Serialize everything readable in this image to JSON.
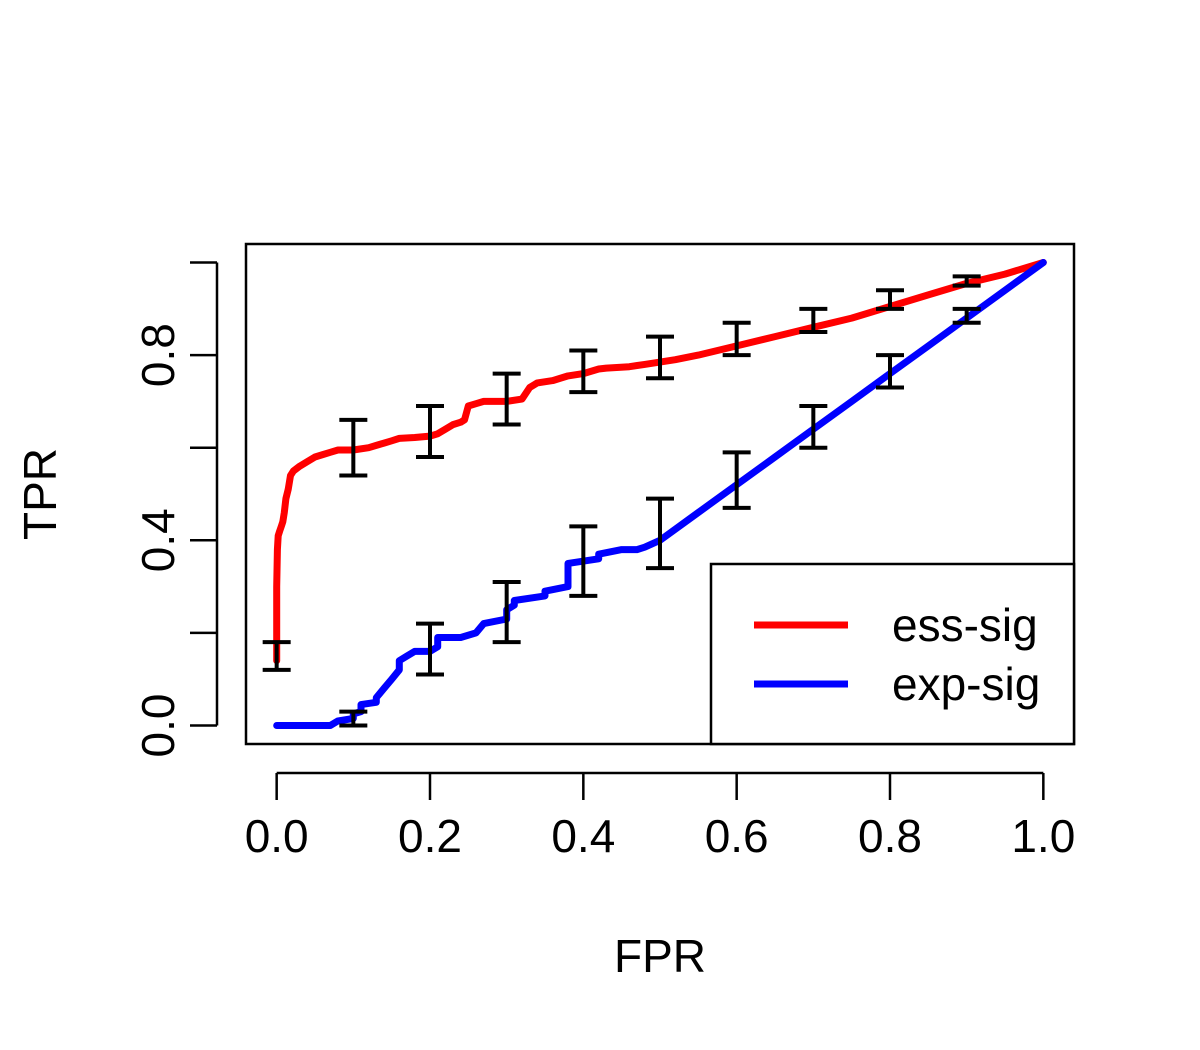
{
  "chart_data": {
    "type": "line",
    "xlabel": "FPR",
    "ylabel": "TPR",
    "xlim": [
      -0.04,
      1.04
    ],
    "ylim": [
      -0.04,
      1.04
    ],
    "x_ticks": [
      0.0,
      0.2,
      0.4,
      0.6,
      0.8,
      1.0
    ],
    "x_tick_labels": [
      "0.0",
      "0.2",
      "0.4",
      "0.6",
      "0.8",
      "1.0"
    ],
    "y_ticks": [
      0.0,
      0.2,
      0.4,
      0.6,
      0.8,
      1.0
    ],
    "y_tick_labels": [
      "0.0",
      "",
      "0.4",
      "",
      "0.8",
      ""
    ],
    "grid": false,
    "legend_position": "bottom-right",
    "series": [
      {
        "name": "ess-sig",
        "color": "#ff0000",
        "x": [
          0.0,
          0.0,
          0.001,
          0.002,
          0.004,
          0.006,
          0.008,
          0.01,
          0.012,
          0.015,
          0.018,
          0.022,
          0.03,
          0.04,
          0.05,
          0.06,
          0.07,
          0.08,
          0.1,
          0.12,
          0.13,
          0.14,
          0.15,
          0.16,
          0.18,
          0.2,
          0.21,
          0.22,
          0.23,
          0.24,
          0.245,
          0.25,
          0.26,
          0.27,
          0.28,
          0.3,
          0.32,
          0.33,
          0.34,
          0.36,
          0.38,
          0.4,
          0.42,
          0.43,
          0.46,
          0.48,
          0.5,
          0.52,
          0.55,
          0.6,
          0.65,
          0.7,
          0.75,
          0.8,
          0.85,
          0.9,
          0.95,
          1.0
        ],
        "y": [
          0.14,
          0.3,
          0.38,
          0.41,
          0.42,
          0.43,
          0.44,
          0.46,
          0.49,
          0.51,
          0.54,
          0.55,
          0.56,
          0.57,
          0.58,
          0.585,
          0.59,
          0.595,
          0.595,
          0.6,
          0.605,
          0.61,
          0.615,
          0.62,
          0.622,
          0.625,
          0.63,
          0.64,
          0.65,
          0.655,
          0.66,
          0.69,
          0.695,
          0.7,
          0.7,
          0.7,
          0.705,
          0.73,
          0.74,
          0.745,
          0.755,
          0.76,
          0.77,
          0.772,
          0.775,
          0.78,
          0.785,
          0.79,
          0.8,
          0.82,
          0.84,
          0.86,
          0.88,
          0.905,
          0.93,
          0.955,
          0.975,
          1.0
        ]
      },
      {
        "name": "exp-sig",
        "color": "#0000ff",
        "x": [
          0.0,
          0.03,
          0.07,
          0.08,
          0.1,
          0.1,
          0.1,
          0.11,
          0.11,
          0.13,
          0.13,
          0.14,
          0.15,
          0.16,
          0.16,
          0.17,
          0.18,
          0.2,
          0.21,
          0.21,
          0.24,
          0.26,
          0.27,
          0.3,
          0.3,
          0.31,
          0.31,
          0.35,
          0.35,
          0.38,
          0.38,
          0.42,
          0.42,
          0.45,
          0.47,
          0.48,
          0.5,
          0.55,
          0.6,
          0.65,
          0.7,
          0.75,
          0.8,
          0.85,
          0.9,
          0.95,
          1.0
        ],
        "y": [
          0.0,
          0.0,
          0.0,
          0.01,
          0.015,
          0.02,
          0.025,
          0.03,
          0.045,
          0.05,
          0.06,
          0.08,
          0.1,
          0.12,
          0.14,
          0.15,
          0.16,
          0.16,
          0.17,
          0.19,
          0.19,
          0.2,
          0.22,
          0.23,
          0.25,
          0.26,
          0.27,
          0.28,
          0.29,
          0.3,
          0.35,
          0.36,
          0.37,
          0.38,
          0.38,
          0.385,
          0.4,
          0.46,
          0.52,
          0.58,
          0.64,
          0.7,
          0.76,
          0.82,
          0.88,
          0.94,
          1.0
        ]
      }
    ],
    "error_bars": [
      {
        "x": 0.0,
        "low": 0.12,
        "high": 0.18
      },
      {
        "x": 0.1,
        "low": 0.54,
        "high": 0.66
      },
      {
        "x": 0.2,
        "low": 0.58,
        "high": 0.69
      },
      {
        "x": 0.3,
        "low": 0.65,
        "high": 0.76
      },
      {
        "x": 0.4,
        "low": 0.72,
        "high": 0.81
      },
      {
        "x": 0.5,
        "low": 0.75,
        "high": 0.84
      },
      {
        "x": 0.6,
        "low": 0.8,
        "high": 0.87
      },
      {
        "x": 0.7,
        "low": 0.85,
        "high": 0.9
      },
      {
        "x": 0.8,
        "low": 0.9,
        "high": 0.94
      },
      {
        "x": 0.9,
        "low": 0.95,
        "high": 0.97
      },
      {
        "x": 0.1,
        "low": 0.0,
        "high": 0.03
      },
      {
        "x": 0.2,
        "low": 0.11,
        "high": 0.22
      },
      {
        "x": 0.3,
        "low": 0.18,
        "high": 0.31
      },
      {
        "x": 0.4,
        "low": 0.28,
        "high": 0.43
      },
      {
        "x": 0.5,
        "low": 0.34,
        "high": 0.49
      },
      {
        "x": 0.6,
        "low": 0.47,
        "high": 0.59
      },
      {
        "x": 0.7,
        "low": 0.6,
        "high": 0.69
      },
      {
        "x": 0.8,
        "low": 0.73,
        "high": 0.8
      },
      {
        "x": 0.9,
        "low": 0.87,
        "high": 0.9
      }
    ]
  }
}
